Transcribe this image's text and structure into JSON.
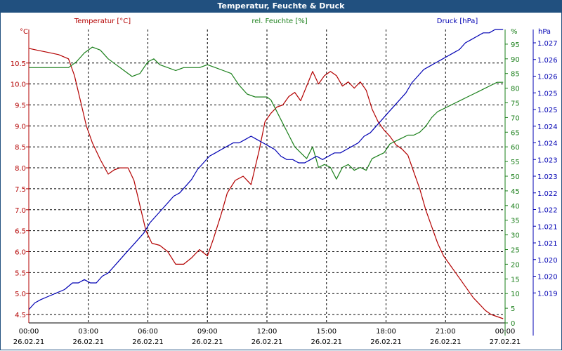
{
  "window": {
    "title": "Temperatur, Feuchte & Druck"
  },
  "colors": {
    "temperature": "#b30000",
    "humidity": "#1a7f1a",
    "pressure": "#0000b3",
    "title_bg": "#21507f",
    "grid": "#000000"
  },
  "chart_data": {
    "type": "line",
    "title": "Temperatur, Feuchte & Druck",
    "grid": true,
    "x_labels": [
      {
        "time": "00:00",
        "date": "26.02.21"
      },
      {
        "time": "03:00",
        "date": "26.02.21"
      },
      {
        "time": "06:00",
        "date": "26.02.21"
      },
      {
        "time": "09:00",
        "date": "26.02.21"
      },
      {
        "time": "12:00",
        "date": "26.02.21"
      },
      {
        "time": "15:00",
        "date": "26.02.21"
      },
      {
        "time": "18:00",
        "date": "26.02.21"
      },
      {
        "time": "21:00",
        "date": "26.02.21"
      },
      {
        "time": "00:00",
        "date": "27.02.21"
      }
    ],
    "x_range_hours": [
      0,
      24
    ],
    "axes": {
      "temperature": {
        "label": "Temperatur [°C]",
        "unit": "°C",
        "range": [
          4.3,
          11.3
        ],
        "ticks": [
          "10.5",
          "10.0",
          "9.5",
          "9.0",
          "8.5",
          "8.0",
          "7.5",
          "7.0",
          "6.5",
          "6.0",
          "5.5",
          "5.0",
          "4.5"
        ],
        "tick_values": [
          10.5,
          10.0,
          9.5,
          9.0,
          8.5,
          8.0,
          7.5,
          7.0,
          6.5,
          6.0,
          5.5,
          5.0,
          4.5
        ]
      },
      "humidity": {
        "label": "rel. Feuchte [%]",
        "unit": "%",
        "range": [
          0,
          100
        ],
        "ticks": [
          "95",
          "90",
          "85",
          "80",
          "75",
          "70",
          "65",
          "60",
          "55",
          "50",
          "45",
          "40",
          "35",
          "30",
          "25",
          "20",
          "15",
          "10",
          "5",
          "0"
        ],
        "tick_values": [
          95,
          90,
          85,
          80,
          75,
          70,
          65,
          60,
          55,
          50,
          45,
          40,
          35,
          30,
          25,
          20,
          15,
          10,
          5,
          0
        ]
      },
      "pressure": {
        "label": "Druck [hPa]",
        "unit": "hPa",
        "range": [
          1018.6,
          1027.4
        ],
        "ticks": [
          "1.027",
          "1.026",
          "1.026",
          "1.025",
          "1.025",
          "1.024",
          "1.024",
          "1.023",
          "1.023",
          "1.022",
          "1.022",
          "1.021",
          "1.021",
          "1.020",
          "1.020",
          "1.019"
        ],
        "tick_values": [
          1027.0,
          1026.5,
          1026.0,
          1025.5,
          1025.0,
          1024.5,
          1024.0,
          1023.5,
          1023.0,
          1022.5,
          1022.0,
          1021.5,
          1021.0,
          1020.5,
          1020.0,
          1019.5
        ]
      }
    },
    "series": [
      {
        "name": "Temperatur [°C]",
        "axis": "temperature",
        "x": [
          0,
          0.5,
          1,
          1.5,
          2,
          2.3,
          2.6,
          2.9,
          3.2,
          3.6,
          4.0,
          4.3,
          4.6,
          5.0,
          5.3,
          5.6,
          5.9,
          6.2,
          6.6,
          7.0,
          7.4,
          7.8,
          8.2,
          8.6,
          9.0,
          9.3,
          9.7,
          10.0,
          10.4,
          10.8,
          11.2,
          11.6,
          11.9,
          12.2,
          12.5,
          12.8,
          13.1,
          13.4,
          13.7,
          14.0,
          14.3,
          14.6,
          14.9,
          15.2,
          15.5,
          15.8,
          16.1,
          16.4,
          16.7,
          17.0,
          17.3,
          17.6,
          17.9,
          18.2,
          18.5,
          18.8,
          19.1,
          19.4,
          19.7,
          20.0,
          20.3,
          20.6,
          20.9,
          21.2,
          21.5,
          21.8,
          22.1,
          22.4,
          22.7,
          23.0,
          23.3,
          23.6,
          23.9
        ],
        "values": [
          10.85,
          10.8,
          10.75,
          10.7,
          10.6,
          10.2,
          9.6,
          9.0,
          8.6,
          8.2,
          7.85,
          7.95,
          8.0,
          8.0,
          7.7,
          7.1,
          6.5,
          6.2,
          6.15,
          6.0,
          5.7,
          5.7,
          5.85,
          6.05,
          5.9,
          6.3,
          6.9,
          7.4,
          7.7,
          7.8,
          7.6,
          8.4,
          9.1,
          9.3,
          9.45,
          9.5,
          9.7,
          9.8,
          9.6,
          9.95,
          10.3,
          10.0,
          10.2,
          10.3,
          10.2,
          9.95,
          10.05,
          9.9,
          10.05,
          9.85,
          9.4,
          9.1,
          8.9,
          8.75,
          8.55,
          8.45,
          8.3,
          7.9,
          7.5,
          7.0,
          6.6,
          6.2,
          5.9,
          5.7,
          5.5,
          5.3,
          5.1,
          4.9,
          4.75,
          4.6,
          4.5,
          4.45,
          4.4
        ]
      },
      {
        "name": "rel. Feuchte [%]",
        "axis": "humidity",
        "x": [
          0,
          0.5,
          1,
          1.5,
          2,
          2.4,
          2.8,
          3.2,
          3.6,
          4.0,
          4.4,
          4.8,
          5.2,
          5.6,
          6.0,
          6.3,
          6.6,
          7.0,
          7.4,
          7.8,
          8.2,
          8.6,
          9.0,
          9.4,
          9.8,
          10.2,
          10.6,
          11.0,
          11.4,
          11.8,
          12.0,
          12.2,
          12.5,
          12.8,
          13.1,
          13.4,
          13.7,
          14.0,
          14.3,
          14.6,
          14.9,
          15.2,
          15.5,
          15.8,
          16.1,
          16.4,
          16.7,
          17.0,
          17.3,
          17.6,
          17.9,
          18.2,
          18.5,
          18.8,
          19.1,
          19.4,
          19.7,
          20.0,
          20.3,
          20.6,
          20.9,
          21.2,
          21.5,
          21.8,
          22.1,
          22.4,
          22.7,
          23.0,
          23.3,
          23.6,
          23.9
        ],
        "values": [
          87,
          87,
          87,
          87,
          87,
          89,
          92,
          94,
          93,
          90,
          88,
          86,
          84,
          85,
          89,
          90,
          88,
          87,
          86,
          87,
          87,
          87,
          88,
          87,
          86,
          85,
          81,
          78,
          77,
          77,
          77,
          76,
          72,
          68,
          64,
          60,
          58,
          56,
          60,
          53,
          54,
          53,
          49,
          53,
          54,
          52,
          53,
          52,
          56,
          57,
          58,
          61,
          62,
          63,
          64,
          64,
          65,
          67,
          70,
          72,
          73,
          74,
          75,
          76,
          77,
          78,
          79,
          80,
          81,
          82,
          82
        ]
      },
      {
        "name": "Druck [hPa]",
        "axis": "pressure",
        "x": [
          0,
          0.3,
          0.6,
          1,
          1.4,
          1.8,
          2.2,
          2.5,
          2.8,
          3.1,
          3.4,
          3.7,
          4.0,
          4.3,
          4.6,
          4.9,
          5.2,
          5.5,
          5.8,
          6.1,
          6.4,
          6.7,
          7.0,
          7.3,
          7.6,
          7.9,
          8.2,
          8.5,
          8.8,
          9.1,
          9.4,
          9.7,
          10.0,
          10.3,
          10.6,
          10.9,
          11.2,
          11.5,
          11.8,
          12.1,
          12.4,
          12.7,
          13.0,
          13.3,
          13.6,
          13.9,
          14.2,
          14.5,
          14.8,
          15.1,
          15.4,
          15.7,
          16.0,
          16.3,
          16.6,
          16.9,
          17.2,
          17.5,
          17.8,
          18.1,
          18.4,
          18.7,
          19.0,
          19.3,
          19.6,
          19.9,
          20.2,
          20.5,
          20.8,
          21.1,
          21.4,
          21.7,
          22.0,
          22.3,
          22.6,
          22.9,
          23.2,
          23.5,
          23.9
        ],
        "values": [
          1019.0,
          1019.2,
          1019.3,
          1019.4,
          1019.5,
          1019.6,
          1019.8,
          1019.8,
          1019.9,
          1019.8,
          1019.8,
          1020.0,
          1020.1,
          1020.3,
          1020.5,
          1020.7,
          1020.9,
          1021.1,
          1021.3,
          1021.6,
          1021.8,
          1022.0,
          1022.2,
          1022.4,
          1022.5,
          1022.7,
          1022.9,
          1023.2,
          1023.4,
          1023.6,
          1023.7,
          1023.8,
          1023.9,
          1024.0,
          1024.0,
          1024.1,
          1024.2,
          1024.1,
          1024.0,
          1023.9,
          1023.8,
          1023.6,
          1023.5,
          1023.5,
          1023.4,
          1023.4,
          1023.5,
          1023.6,
          1023.5,
          1023.6,
          1023.7,
          1023.7,
          1023.8,
          1023.9,
          1024.0,
          1024.2,
          1024.3,
          1024.5,
          1024.7,
          1024.9,
          1025.1,
          1025.3,
          1025.5,
          1025.8,
          1026.0,
          1026.2,
          1026.3,
          1026.4,
          1026.5,
          1026.6,
          1026.7,
          1026.8,
          1027.0,
          1027.1,
          1027.2,
          1027.3,
          1027.3,
          1027.4,
          1027.4
        ]
      }
    ]
  }
}
